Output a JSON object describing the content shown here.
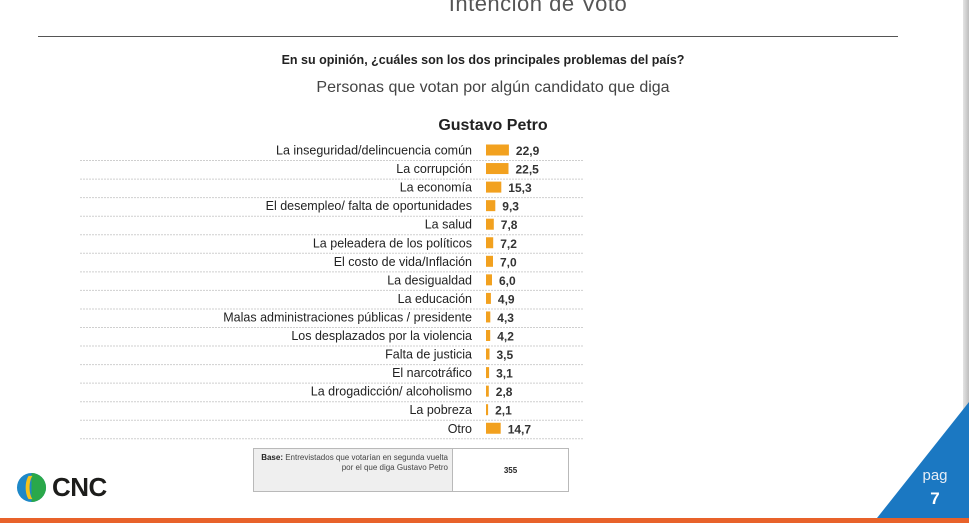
{
  "header": {
    "title": "Intención de Voto",
    "question": "En su opinión, ¿cuáles son los dos principales problemas del país?"
  },
  "chart_data": {
    "type": "bar",
    "orientation": "horizontal",
    "title": "Personas que votan por algún candidato que diga",
    "subtitle": "Gustavo Petro",
    "categories": [
      "La inseguridad/delincuencia común",
      "La corrupción",
      "La economía",
      "El desempleo/ falta de oportunidades",
      "La salud",
      "La peleadera de los políticos",
      "El costo de vida/Inflación",
      "La desigualdad",
      "La educación",
      "Malas administraciones públicas / presidente",
      "Los desplazados por la violencia",
      "Falta de justicia",
      "El narcotráfico",
      "La drogadicción/ alcoholismo",
      "La pobreza",
      "Otro"
    ],
    "values": [
      22.9,
      22.5,
      15.3,
      9.3,
      7.8,
      7.2,
      7.0,
      6.0,
      4.9,
      4.3,
      4.2,
      3.5,
      3.1,
      2.8,
      2.1,
      14.7
    ],
    "value_labels": [
      "22,9",
      "22,5",
      "15,3",
      "9,3",
      "7,8",
      "7,2",
      "7,0",
      "6,0",
      "4,9",
      "4,3",
      "4,2",
      "3,5",
      "3,1",
      "2,8",
      "2,1",
      "14,7"
    ],
    "color": "#f2a11f",
    "grid": false,
    "legend": "none"
  },
  "base": {
    "label_bold": "Base:",
    "label_text": "Entrevistados que votarían en segunda vuelta por el que diga Gustavo Petro",
    "value": "355"
  },
  "logo": {
    "text": "CNC"
  },
  "page": {
    "label": "pag",
    "number": "7",
    "accent_color": "#1b78c2"
  }
}
